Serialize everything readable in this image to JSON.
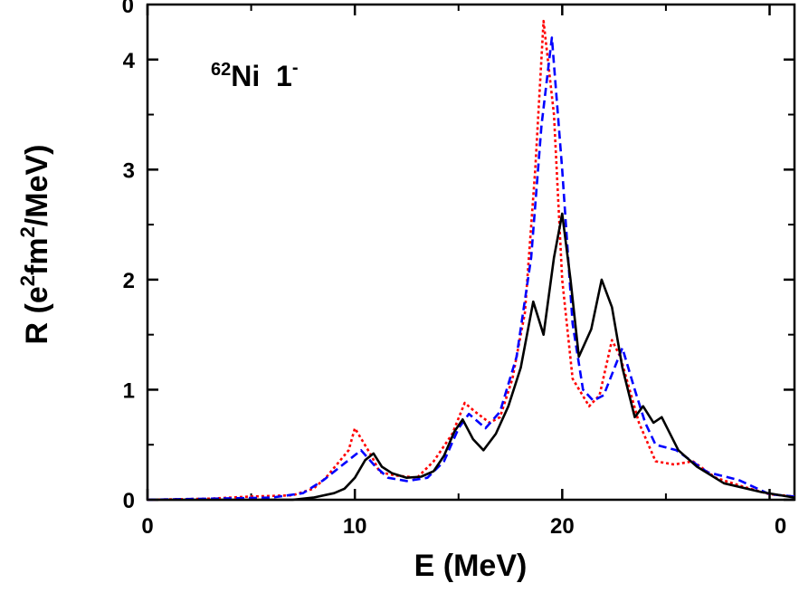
{
  "top_panel": {
    "y_tick_label": "0"
  },
  "chart_data": {
    "type": "line",
    "annotation": [
      "62",
      "Ni  1",
      "-"
    ],
    "x_label": "E (MeV)",
    "y_label": [
      "R (e",
      "2",
      "fm",
      "2",
      "/MeV)"
    ],
    "xlim": [
      0,
      31.2
    ],
    "ylim": [
      0,
      4.5
    ],
    "xticks": [
      0,
      10,
      20,
      {
        "value": 30,
        "label": "0"
      }
    ],
    "xminor": [
      5,
      15,
      25
    ],
    "yticks": [
      0,
      1,
      2,
      3,
      4
    ],
    "yminor": [
      0.5,
      1.5,
      2.5,
      3.5
    ],
    "series": [
      {
        "color": "#000000",
        "style": "solid",
        "x": [
          0,
          7,
          8,
          9,
          9.5,
          10,
          10.5,
          10.9,
          11.3,
          11.8,
          12.5,
          13.2,
          13.8,
          14.3,
          14.8,
          15.2,
          15.7,
          16.2,
          16.8,
          17.4,
          18.0,
          18.6,
          19.1,
          19.6,
          20.0,
          20.4,
          20.8,
          21.4,
          21.9,
          22.4,
          22.9,
          23.5,
          23.9,
          24.4,
          24.8,
          25.6,
          26.5,
          27.8,
          29.6,
          31.2
        ],
        "values": [
          0,
          0,
          0.02,
          0.06,
          0.1,
          0.2,
          0.36,
          0.42,
          0.3,
          0.24,
          0.2,
          0.21,
          0.26,
          0.4,
          0.62,
          0.73,
          0.55,
          0.45,
          0.6,
          0.85,
          1.2,
          1.8,
          1.5,
          2.2,
          2.6,
          2.0,
          1.3,
          1.55,
          2.0,
          1.75,
          1.2,
          0.75,
          0.85,
          0.7,
          0.75,
          0.45,
          0.3,
          0.15,
          0.07,
          0.02
        ]
      },
      {
        "color": "#0000ff",
        "style": "dashed",
        "x": [
          0,
          3,
          6,
          7.5,
          8.5,
          9.3,
          10.3,
          11,
          11.6,
          12.5,
          13.5,
          14.3,
          15,
          15.5,
          16.3,
          17,
          17.8,
          18.5,
          19.0,
          19.5,
          20.0,
          20.5,
          21.0,
          21.5,
          22.0,
          22.9,
          23.5,
          24.0,
          24.5,
          25.5,
          27.0,
          28.5,
          30.0,
          31.2
        ],
        "values": [
          0,
          0.01,
          0.02,
          0.06,
          0.18,
          0.3,
          0.45,
          0.3,
          0.2,
          0.17,
          0.2,
          0.35,
          0.65,
          0.78,
          0.65,
          0.8,
          1.3,
          2.2,
          3.4,
          4.2,
          3.0,
          1.6,
          1.0,
          0.9,
          0.95,
          1.38,
          1.0,
          0.7,
          0.5,
          0.45,
          0.25,
          0.18,
          0.05,
          0.03
        ]
      },
      {
        "color": "#ff0000",
        "style": "dotted",
        "x": [
          0,
          3,
          5,
          7,
          8,
          8.6,
          9.7,
          10.0,
          10.8,
          11.2,
          12,
          13,
          13.8,
          14.7,
          15.3,
          15.8,
          16.5,
          17.0,
          17.6,
          18.2,
          18.7,
          19.1,
          19.6,
          20.0,
          20.5,
          21.3,
          21.8,
          22.4,
          22.8,
          23.7,
          24.5,
          25.4,
          26.3,
          27.4,
          28.7,
          30.0,
          31.2
        ],
        "values": [
          0,
          0.01,
          0.03,
          0.04,
          0.1,
          0.2,
          0.45,
          0.65,
          0.4,
          0.25,
          0.22,
          0.2,
          0.35,
          0.6,
          0.88,
          0.8,
          0.7,
          0.75,
          1.1,
          1.7,
          3.0,
          4.35,
          3.5,
          2.0,
          1.1,
          0.85,
          0.95,
          1.45,
          1.3,
          0.7,
          0.35,
          0.32,
          0.35,
          0.2,
          0.12,
          0.05,
          0.03
        ]
      }
    ]
  }
}
